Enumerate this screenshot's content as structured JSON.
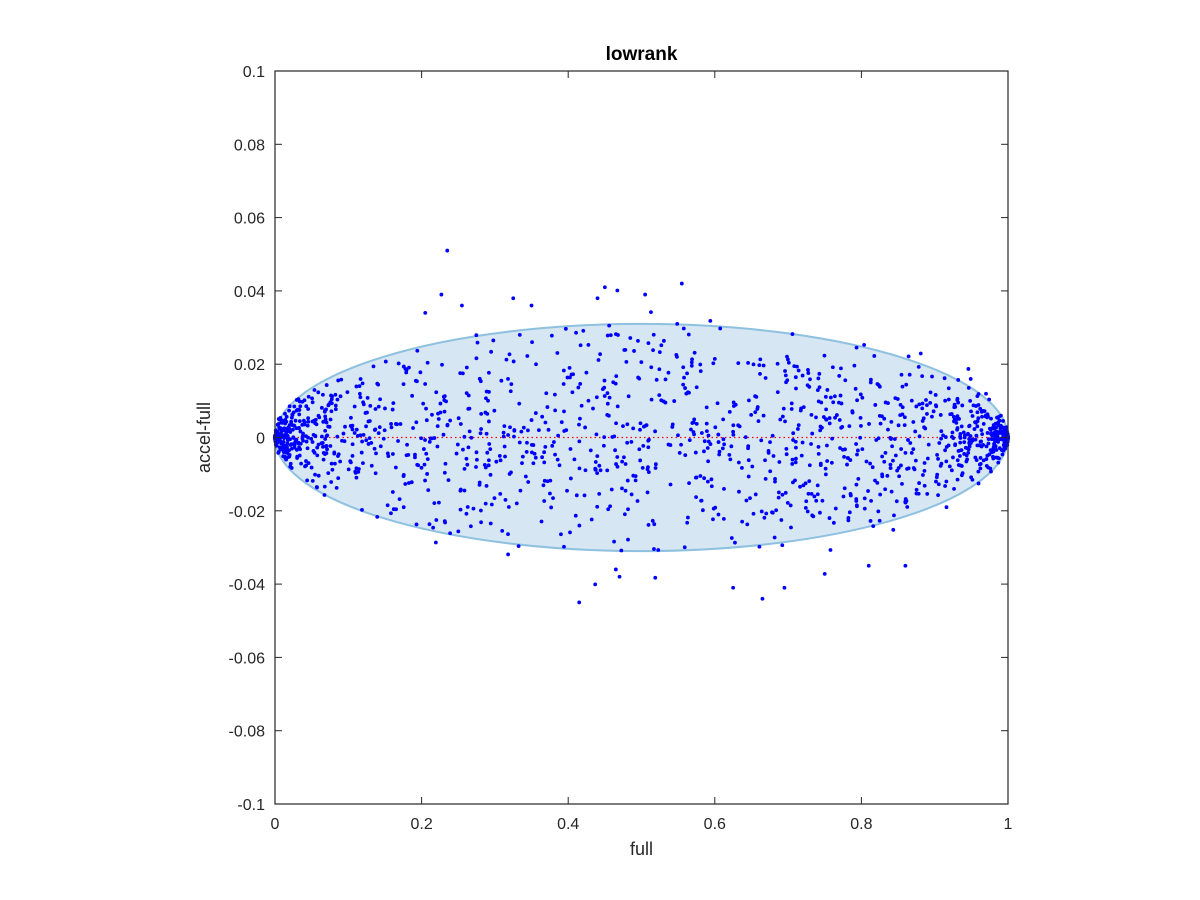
{
  "chart_data": {
    "type": "scatter",
    "title": "lowrank",
    "xlabel": "full",
    "ylabel": "accel-full",
    "xlim": [
      0,
      1
    ],
    "ylim": [
      -0.1,
      0.1
    ],
    "xticks": [
      0,
      0.2,
      0.4,
      0.6,
      0.8,
      1
    ],
    "xtick_labels": [
      "0",
      "0.2",
      "0.4",
      "0.6",
      "0.8",
      "1"
    ],
    "yticks": [
      -0.1,
      -0.08,
      -0.06,
      -0.04,
      -0.02,
      0,
      0.02,
      0.04,
      0.06,
      0.08,
      0.1
    ],
    "ytick_labels": [
      "-0.1",
      "-0.08",
      "-0.06",
      "-0.04",
      "-0.02",
      "0",
      "0.02",
      "0.04",
      "0.06",
      "0.08",
      "0.1"
    ],
    "grid": false,
    "reference_line": {
      "y": 0,
      "style": "dotted",
      "color": "#ff0000"
    },
    "ellipse": {
      "cx": 0.5,
      "cy": 0,
      "rx": 0.5,
      "ry": 0.031,
      "fill": "#d6e6f2",
      "stroke": "#8ec0e0"
    },
    "point_color": "#0000ff",
    "series": [
      {
        "values_sample": [
          [
            0.235,
            0.051
          ],
          [
            0.555,
            0.042
          ],
          [
            0.45,
            0.041
          ],
          [
            0.227,
            0.039
          ],
          [
            0.505,
            0.039
          ],
          [
            0.44,
            0.038
          ],
          [
            0.325,
            0.038
          ],
          [
            0.35,
            0.036
          ],
          [
            0.255,
            0.036
          ],
          [
            0.205,
            0.034
          ],
          [
            0.415,
            -0.045
          ],
          [
            0.665,
            -0.044
          ],
          [
            0.625,
            -0.041
          ],
          [
            0.695,
            -0.041
          ],
          [
            0.47,
            -0.038
          ],
          [
            0.465,
            -0.036
          ],
          [
            0.81,
            -0.035
          ],
          [
            0.86,
            -0.035
          ],
          [
            0.005,
            0.0
          ],
          [
            0.995,
            0.0
          ]
        ],
        "count": 1500,
        "distribution": "uniform in full (0 to 1), accel-full spread within the ellipse with a few outliers up to about ±0.05"
      }
    ]
  }
}
